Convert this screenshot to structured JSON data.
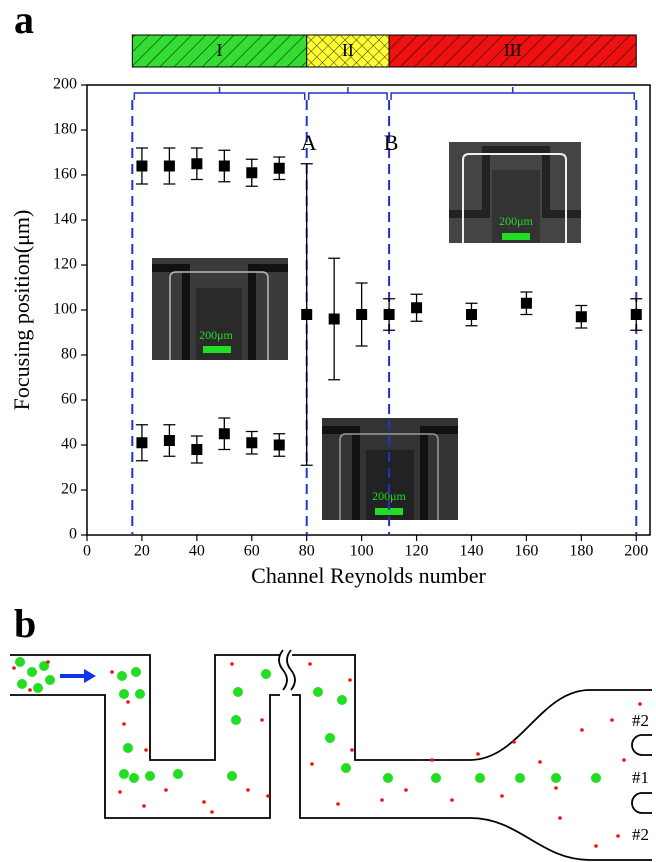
{
  "panel_labels": [
    "a",
    "b"
  ],
  "chart_data": {
    "type": "scatter",
    "xlabel": "Channel Reynolds number",
    "ylabel": "Focusing position(μm)",
    "xlim": [
      0,
      205
    ],
    "ylim": [
      0,
      200
    ],
    "xticks": [
      0,
      20,
      40,
      60,
      80,
      100,
      120,
      140,
      160,
      180,
      200
    ],
    "yticks": [
      0,
      20,
      40,
      60,
      80,
      100,
      120,
      140,
      160,
      180,
      200
    ],
    "color": "#000000",
    "regions": [
      {
        "label": "I",
        "from": 16.5,
        "to": 80,
        "color": "#33dd33"
      },
      {
        "label": "II",
        "from": 80,
        "to": 110,
        "color": "#ffff33"
      },
      {
        "label": "III",
        "from": 110,
        "to": 200,
        "color": "#ee1111"
      }
    ],
    "markers": [
      {
        "label": "A",
        "x": 80
      },
      {
        "label": "B",
        "x": 110
      }
    ],
    "insets": [
      {
        "scale_label": "200μm"
      },
      {
        "scale_label": "200μm"
      },
      {
        "scale_label": "200μm"
      }
    ],
    "series": [
      {
        "x": [
          20,
          30,
          40,
          50,
          60,
          70
        ],
        "values": [
          164,
          164,
          165,
          164,
          161,
          163
        ],
        "errors": [
          8,
          8,
          7,
          7,
          6,
          5
        ]
      },
      {
        "x": [
          20,
          30,
          40,
          50,
          60,
          70
        ],
        "values": [
          41,
          42,
          38,
          45,
          41,
          40
        ],
        "errors": [
          8,
          7,
          6,
          7,
          5,
          5
        ]
      },
      {
        "x": [
          80,
          90,
          100,
          110,
          120,
          140,
          160,
          180,
          200
        ],
        "values": [
          98,
          96,
          98,
          98,
          101,
          98,
          103,
          97,
          98
        ],
        "errors": [
          67,
          27,
          14,
          7,
          6,
          5,
          5,
          5,
          7
        ]
      }
    ]
  },
  "diagram": {
    "outlet_labels": [
      "#2",
      "#1",
      "#2"
    ]
  }
}
